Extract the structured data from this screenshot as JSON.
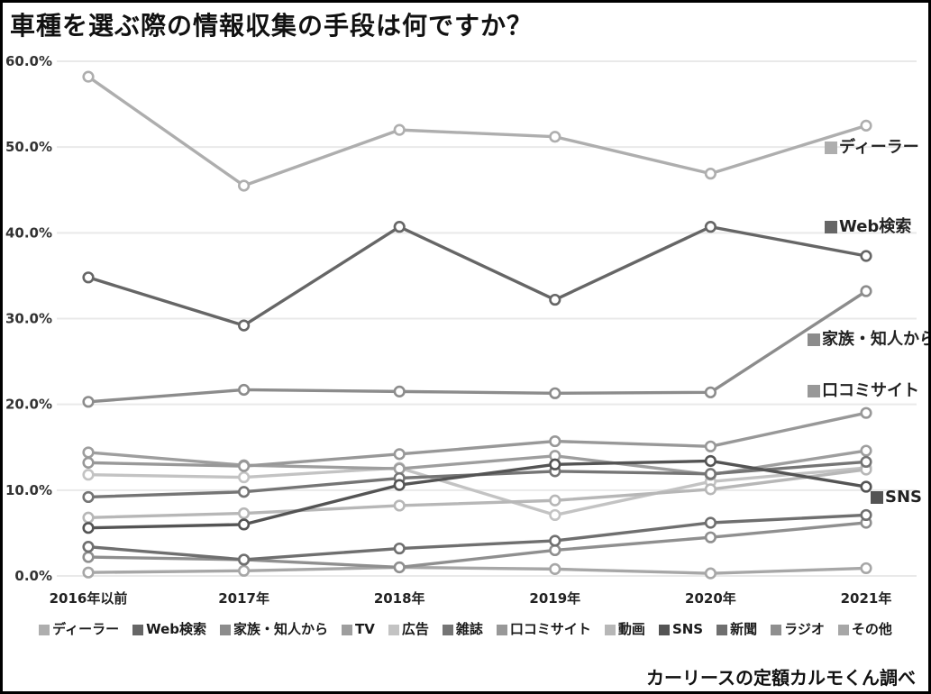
{
  "title": "車種を選ぶ際の情報収集の手段は何ですか？",
  "source_note": "カーリースの定額カルモくん調べ",
  "chart_data": {
    "type": "line",
    "title": "車種を選ぶ際の情報収集の手段は何ですか？",
    "categories": [
      "2016年以前",
      "2017年",
      "2018年",
      "2019年",
      "2020年",
      "2021年"
    ],
    "ylim": [
      0,
      60
    ],
    "y_tick_labels": [
      "0.0%",
      "10.0%",
      "20.0%",
      "30.0%",
      "40.0%",
      "50.0%",
      "60.0%"
    ],
    "grid": "horizontal",
    "legend_position": "bottom",
    "marker": "open-circle",
    "series": [
      {
        "name": "ディーラー",
        "color": "#aeaeae",
        "values": [
          58.2,
          45.5,
          52.0,
          51.2,
          46.9,
          52.5
        ]
      },
      {
        "name": "Web検索",
        "color": "#666666",
        "values": [
          34.8,
          29.2,
          40.7,
          32.2,
          40.7,
          37.3
        ]
      },
      {
        "name": "家族・知人から",
        "color": "#8c8c8c",
        "values": [
          20.3,
          21.7,
          21.5,
          21.3,
          21.4,
          33.2
        ]
      },
      {
        "name": "TV",
        "color": "#9e9e9e",
        "values": [
          14.4,
          12.9,
          12.5,
          14.0,
          11.8,
          14.6
        ]
      },
      {
        "name": "広告",
        "color": "#c3c3c3",
        "values": [
          11.8,
          11.5,
          12.6,
          7.1,
          11.0,
          12.6
        ]
      },
      {
        "name": "雑誌",
        "color": "#757575",
        "values": [
          9.2,
          9.8,
          11.4,
          12.2,
          11.9,
          13.3
        ]
      },
      {
        "name": "口コミサイト",
        "color": "#989898",
        "values": [
          13.2,
          12.8,
          14.2,
          15.7,
          15.1,
          19.0
        ]
      },
      {
        "name": "動画",
        "color": "#b7b7b7",
        "values": [
          6.8,
          7.3,
          8.2,
          8.8,
          10.1,
          12.4
        ]
      },
      {
        "name": "SNS",
        "color": "#545454",
        "values": [
          5.6,
          6.0,
          10.6,
          13.0,
          13.4,
          10.4
        ]
      },
      {
        "name": "新聞",
        "color": "#6f6f6f",
        "values": [
          3.4,
          1.9,
          3.2,
          4.1,
          6.2,
          7.1
        ]
      },
      {
        "name": "ラジオ",
        "color": "#8f8f8f",
        "values": [
          2.2,
          1.9,
          1.0,
          3.0,
          4.5,
          6.2
        ]
      },
      {
        "name": "その他",
        "color": "#a7a7a7",
        "values": [
          0.4,
          0.6,
          1.0,
          0.8,
          0.3,
          0.9
        ]
      }
    ]
  },
  "annotations": [
    {
      "text": "ディーラー",
      "series": "ディーラー"
    },
    {
      "text": "Web検索",
      "series": "Web検索"
    },
    {
      "text": "家族・知人から",
      "series": "家族・知人から"
    },
    {
      "text": "口コミサイト",
      "series": "口コミサイト"
    },
    {
      "text": "SNS",
      "series": "SNS"
    }
  ]
}
